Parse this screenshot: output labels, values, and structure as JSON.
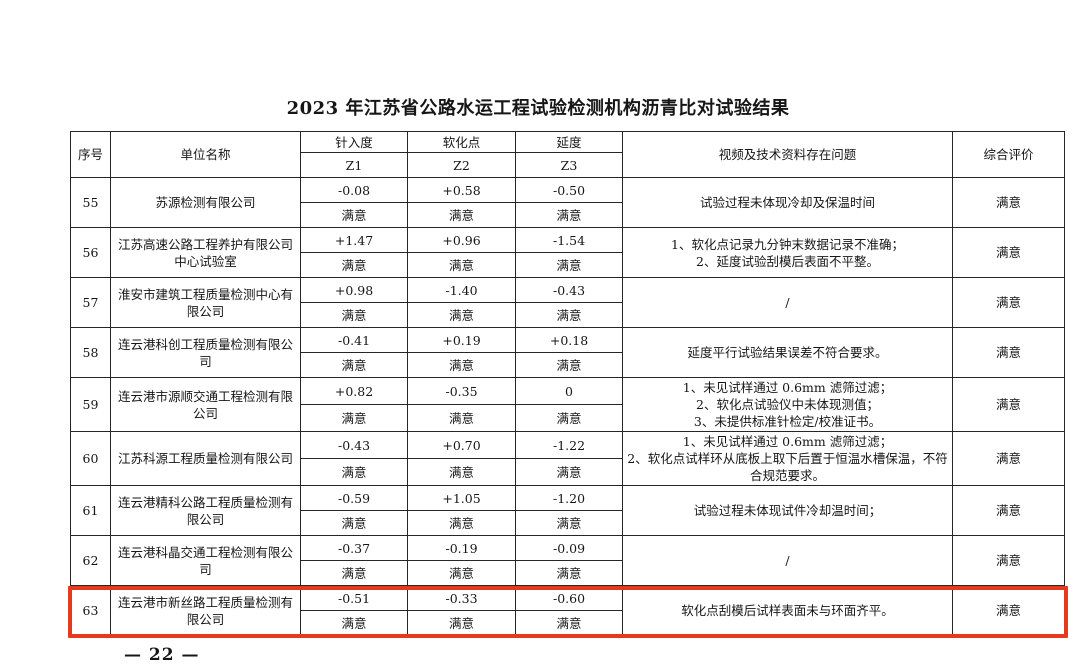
{
  "title": "2023 年江苏省公路水运工程试验检测机构沥青比对试验结果",
  "page_number": "— 22 —",
  "highlight_color": "#e7391b",
  "table": {
    "headers": {
      "serial": "序号",
      "unit": "单位名称",
      "penetration": "针入度",
      "softening": "软化点",
      "ductility": "延度",
      "z1": "Z1",
      "z2": "Z2",
      "z3": "Z3",
      "problems": "视频及技术资料存在问题",
      "evaluation": "综合评价"
    },
    "rows": [
      {
        "no": "55",
        "unit": "苏源检测有限公司",
        "z1": "-0.08",
        "z2": "+0.58",
        "z3": "-0.50",
        "ratings": [
          "满意",
          "满意",
          "满意"
        ],
        "problems": [
          "试验过程未体现冷却及保温时间"
        ],
        "eval": "满意",
        "highlight": false
      },
      {
        "no": "56",
        "unit": "江苏高速公路工程养护有限公司中心试验室",
        "z1": "+1.47",
        "z2": "+0.96",
        "z3": "-1.54",
        "ratings": [
          "满意",
          "满意",
          "满意"
        ],
        "problems": [
          "1、软化点记录九分钟末数据记录不准确；",
          "2、延度试验刮模后表面不平整。"
        ],
        "eval": "满意",
        "highlight": false
      },
      {
        "no": "57",
        "unit": "淮安市建筑工程质量检测中心有限公司",
        "z1": "+0.98",
        "z2": "-1.40",
        "z3": "-0.43",
        "ratings": [
          "满意",
          "满意",
          "满意"
        ],
        "problems": [
          "/"
        ],
        "eval": "满意",
        "highlight": false
      },
      {
        "no": "58",
        "unit": "连云港科创工程质量检测有限公司",
        "z1": "-0.41",
        "z2": "+0.19",
        "z3": "+0.18",
        "ratings": [
          "满意",
          "满意",
          "满意"
        ],
        "problems": [
          "延度平行试验结果误差不符合要求。"
        ],
        "eval": "满意",
        "highlight": false
      },
      {
        "no": "59",
        "unit": "连云港市源顺交通工程检测有限公司",
        "z1": "+0.82",
        "z2": "-0.35",
        "z3": "0",
        "ratings": [
          "满意",
          "满意",
          "满意"
        ],
        "problems": [
          "1、未见试样通过 0.6mm 滤筛过滤；",
          "2、软化点试验仪中未体现测值；",
          "3、未提供标准针检定/校准证书。"
        ],
        "eval": "满意",
        "highlight": false
      },
      {
        "no": "60",
        "unit": "江苏科源工程质量检测有限公司",
        "z1": "-0.43",
        "z2": "+0.70",
        "z3": "-1.22",
        "ratings": [
          "满意",
          "满意",
          "满意"
        ],
        "problems": [
          "1、未见试样通过 0.6mm 滤筛过滤；",
          "2、软化点试样环从底板上取下后置于恒温水槽保温，不符合规范要求。"
        ],
        "eval": "满意",
        "highlight": false
      },
      {
        "no": "61",
        "unit": "连云港精科公路工程质量检测有限公司",
        "z1": "-0.59",
        "z2": "+1.05",
        "z3": "-1.20",
        "ratings": [
          "满意",
          "满意",
          "满意"
        ],
        "problems": [
          "试验过程未体现试件冷却温时间；"
        ],
        "eval": "满意",
        "highlight": false
      },
      {
        "no": "62",
        "unit": "连云港科晶交通工程检测有限公司",
        "z1": "-0.37",
        "z2": "-0.19",
        "z3": "-0.09",
        "ratings": [
          "满意",
          "满意",
          "满意"
        ],
        "problems": [
          "/"
        ],
        "eval": "满意",
        "highlight": false
      },
      {
        "no": "63",
        "unit": "连云港市新丝路工程质量检测有限公司",
        "z1": "-0.51",
        "z2": "-0.33",
        "z3": "-0.60",
        "ratings": [
          "满意",
          "满意",
          "满意"
        ],
        "problems": [
          "软化点刮模后试样表面未与环面齐平。"
        ],
        "eval": "满意",
        "highlight": true
      }
    ]
  }
}
